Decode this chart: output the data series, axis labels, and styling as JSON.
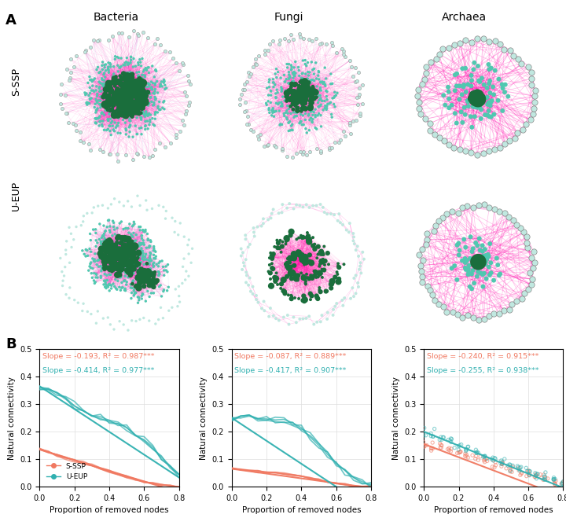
{
  "col_titles": [
    "Bacteria",
    "Fungi",
    "Archaea"
  ],
  "row_labels": [
    "S-SSP",
    "U-EUP"
  ],
  "salmon_color": "#F07860",
  "teal_color": "#30B0B0",
  "pink_edge_color": "#FF00AA",
  "blue_edge_color": "#8888DD",
  "node_color_small": "#50C8B0",
  "node_color_large": "#1A6E3C",
  "node_color_outer": "#C0E8E0",
  "xlabel": "Proportion of removed nodes",
  "ylabel": "Natural connectivity",
  "legend_s": "S-SSP",
  "legend_u": "U-EUP",
  "annotations": [
    [
      "Slope = -0.193, R² = 0.987***",
      "Slope = -0.414, R² = 0.977***"
    ],
    [
      "Slope = -0.087, R² = 0.889***",
      "Slope = -0.417, R² = 0.907***"
    ],
    [
      "Slope = -0.240, R² = 0.915***",
      "Slope = -0.255, R² = 0.938***"
    ]
  ],
  "plot_ylim": [
    0,
    0.5
  ],
  "plot_xlim": [
    0,
    0.8
  ],
  "bacteria_sssp_salmon": {
    "x": [
      0.0,
      0.05,
      0.1,
      0.15,
      0.2,
      0.25,
      0.3,
      0.35,
      0.4,
      0.45,
      0.5,
      0.55,
      0.6,
      0.65,
      0.7,
      0.75,
      0.8
    ],
    "y": [
      0.135,
      0.125,
      0.115,
      0.105,
      0.095,
      0.085,
      0.075,
      0.065,
      0.055,
      0.045,
      0.035,
      0.025,
      0.018,
      0.012,
      0.007,
      0.003,
      0.001
    ]
  },
  "bacteria_sssp_teal": {
    "x": [
      0.0,
      0.05,
      0.1,
      0.15,
      0.2,
      0.25,
      0.3,
      0.35,
      0.4,
      0.45,
      0.5,
      0.55,
      0.6,
      0.65,
      0.7,
      0.75,
      0.8
    ],
    "y": [
      0.365,
      0.355,
      0.34,
      0.32,
      0.295,
      0.27,
      0.255,
      0.248,
      0.24,
      0.225,
      0.21,
      0.19,
      0.17,
      0.14,
      0.11,
      0.075,
      0.045
    ]
  },
  "fungi_sssp_salmon": {
    "x": [
      0.0,
      0.05,
      0.1,
      0.15,
      0.2,
      0.25,
      0.3,
      0.35,
      0.4,
      0.45,
      0.5,
      0.55,
      0.6,
      0.65,
      0.7,
      0.75,
      0.8
    ],
    "y": [
      0.065,
      0.062,
      0.059,
      0.056,
      0.053,
      0.05,
      0.047,
      0.043,
      0.038,
      0.032,
      0.025,
      0.018,
      0.012,
      0.007,
      0.004,
      0.002,
      0.001
    ]
  },
  "fungi_sssp_teal": {
    "x": [
      0.0,
      0.05,
      0.1,
      0.15,
      0.2,
      0.25,
      0.3,
      0.35,
      0.4,
      0.45,
      0.5,
      0.55,
      0.6,
      0.65,
      0.7,
      0.75,
      0.8
    ],
    "y": [
      0.25,
      0.26,
      0.255,
      0.245,
      0.242,
      0.24,
      0.235,
      0.225,
      0.21,
      0.185,
      0.155,
      0.12,
      0.085,
      0.055,
      0.03,
      0.012,
      0.004
    ]
  },
  "archaea_sssp_salmon": {
    "x": [
      0.0,
      0.05,
      0.1,
      0.15,
      0.2,
      0.25,
      0.3,
      0.35,
      0.4,
      0.45,
      0.5,
      0.55,
      0.6,
      0.65,
      0.7,
      0.75,
      0.8
    ],
    "y": [
      0.155,
      0.148,
      0.14,
      0.132,
      0.124,
      0.115,
      0.107,
      0.099,
      0.09,
      0.08,
      0.07,
      0.06,
      0.05,
      0.04,
      0.03,
      0.02,
      0.01
    ]
  },
  "archaea_sssp_teal": {
    "x": [
      0.0,
      0.05,
      0.1,
      0.15,
      0.2,
      0.25,
      0.3,
      0.35,
      0.4,
      0.45,
      0.5,
      0.55,
      0.6,
      0.65,
      0.7,
      0.75,
      0.8
    ],
    "y": [
      0.2,
      0.19,
      0.178,
      0.165,
      0.152,
      0.14,
      0.127,
      0.115,
      0.103,
      0.09,
      0.078,
      0.066,
      0.054,
      0.042,
      0.031,
      0.02,
      0.01
    ]
  }
}
